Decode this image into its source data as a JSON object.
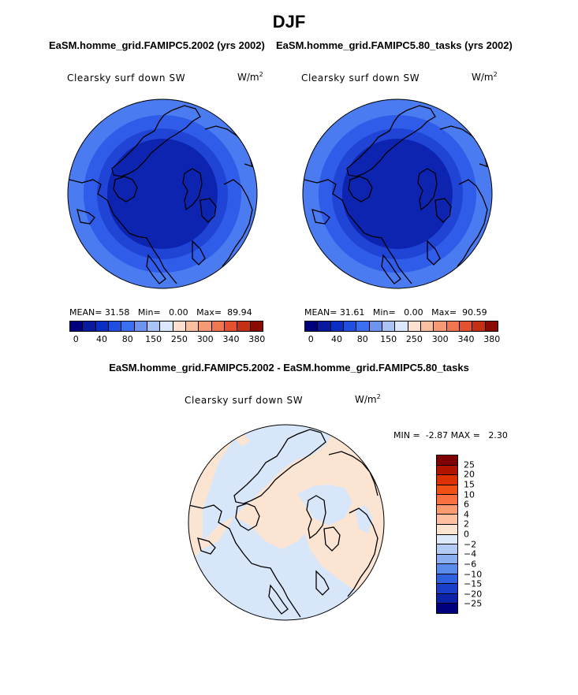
{
  "title": "DJF",
  "colors": {
    "abs_levels": [
      "#00007f",
      "#0a1a9e",
      "#0b2fc4",
      "#1f4ee0",
      "#3a6ff0",
      "#6d95f0",
      "#a9c3f5",
      "#dbe7fb",
      "#fde0d0",
      "#f9bfa0",
      "#f59a75",
      "#f07650",
      "#e4512e",
      "#c52f14",
      "#8a0b04"
    ],
    "diff_levels": [
      "#7f0000",
      "#b01400",
      "#dc3200",
      "#f05014",
      "#fa7040",
      "#fc9a70",
      "#fdbfa0",
      "#fde4d0",
      "#dbe9fb",
      "#b4ccf5",
      "#8aaef0",
      "#5a8aea",
      "#2f60e0",
      "#1b3ec8",
      "#0c22a8",
      "#00007f"
    ],
    "map_ring1": "#4a7bf0",
    "map_ring2": "#2f5ce8",
    "map_ring3": "#1f44d6",
    "map_center": "#0c24b0",
    "diff_blue": "#d8e6fa",
    "diff_orange": "#fbe4d2"
  },
  "panels": [
    {
      "case": "EaSM.homme_grid.FAMIPC5.2002 (yrs 2002)",
      "field": "Clearsky surf down SW",
      "units_base": "W/m",
      "units_exp": "2",
      "stats": {
        "mean_label": "MEAN=",
        "mean": "31.58",
        "min_label": "Min=",
        "min": "0.00",
        "max_label": "Max=",
        "max": "89.94"
      }
    },
    {
      "case": "EaSM.homme_grid.FAMIPC5.80_tasks (yrs 2002)",
      "field": "Clearsky surf down SW",
      "units_base": "W/m",
      "units_exp": "2",
      "stats": {
        "mean_label": "MEAN=",
        "mean": "31.61",
        "min_label": "Min=",
        "min": "0.00",
        "max_label": "Max=",
        "max": "90.59"
      }
    }
  ],
  "abs_colorbar_labels": [
    "0",
    "40",
    "80",
    "150",
    "250",
    "300",
    "340",
    "380"
  ],
  "diff": {
    "case": "EaSM.homme_grid.FAMIPC5.2002 - EaSM.homme_grid.FAMIPC5.80_tasks",
    "field": "Clearsky surf down SW",
    "units_base": "W/m",
    "units_exp": "2",
    "stats": {
      "min_label": "MIN =",
      "min": "-2.87",
      "max_label": "MAX =",
      "max": "2.30"
    },
    "colorbar_labels": [
      "25",
      "20",
      "15",
      "10",
      "6",
      "4",
      "2",
      "0",
      "−2",
      "−4",
      "−6",
      "−10",
      "−15",
      "−20",
      "−25"
    ]
  }
}
